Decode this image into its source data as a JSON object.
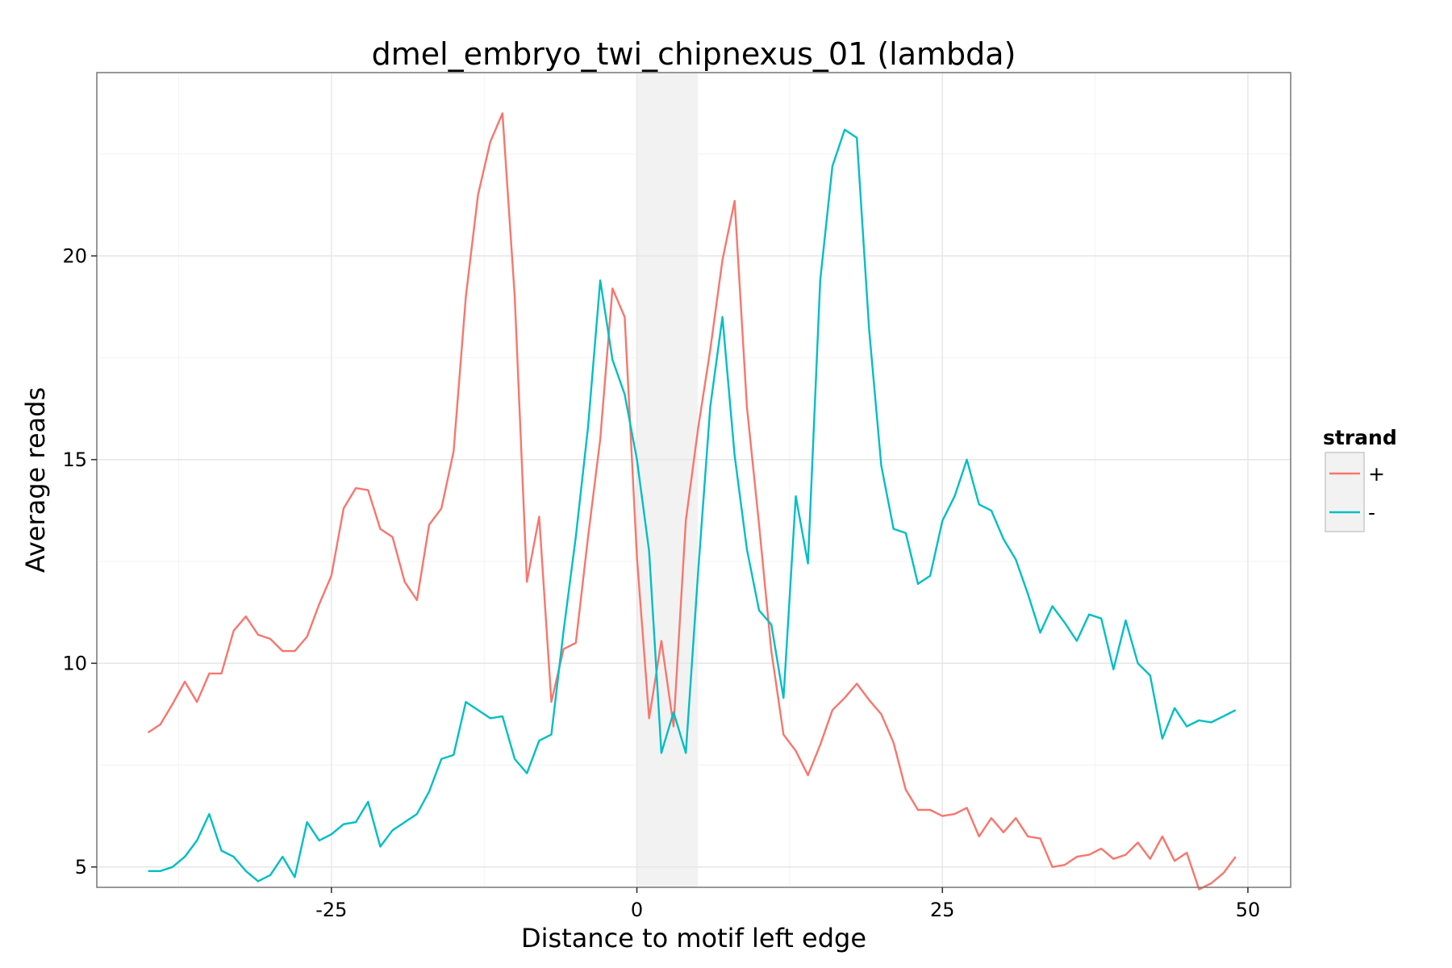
{
  "chart_data": {
    "type": "line",
    "title": "dmel_embryo_twi_chipnexus_01 (lambda)",
    "xlabel": "Distance to motif left edge",
    "ylabel": "Average reads",
    "xlim": [
      -44.2,
      53.5
    ],
    "ylim": [
      4.5,
      24.5
    ],
    "x_ticks": [
      -25,
      0,
      25,
      50
    ],
    "x_tick_labels": [
      "-25",
      "0",
      "25",
      "50"
    ],
    "y_ticks": [
      5,
      10,
      15,
      20
    ],
    "y_tick_labels": [
      "5",
      "10",
      "15",
      "20"
    ],
    "highlight_region": [
      0,
      5
    ],
    "legend": {
      "title": "strand",
      "position": "right"
    },
    "x": [
      -40,
      -39,
      -38,
      -37,
      -36,
      -35,
      -34,
      -33,
      -32,
      -31,
      -30,
      -29,
      -28,
      -27,
      -26,
      -25,
      -24,
      -23,
      -22,
      -21,
      -20,
      -19,
      -18,
      -17,
      -16,
      -15,
      -14,
      -13,
      -12,
      -11,
      -10,
      -9,
      -8,
      -7,
      -6,
      -5,
      -4,
      -3,
      -2,
      -1,
      0,
      1,
      2,
      3,
      4,
      5,
      6,
      7,
      8,
      9,
      10,
      11,
      12,
      13,
      14,
      15,
      16,
      17,
      18,
      19,
      20,
      21,
      22,
      23,
      24,
      25,
      26,
      27,
      28,
      29,
      30,
      31,
      32,
      33,
      34,
      35,
      36,
      37,
      38,
      39,
      40,
      41,
      42,
      43,
      44,
      45,
      46,
      47,
      48,
      49
    ],
    "series": [
      {
        "name": "+",
        "color": "#F8766D",
        "values": [
          8.3,
          8.5,
          9.0,
          9.55,
          9.05,
          9.75,
          9.75,
          10.8,
          11.15,
          10.7,
          10.6,
          10.3,
          10.3,
          10.65,
          11.45,
          12.15,
          13.8,
          14.3,
          14.25,
          13.3,
          13.1,
          12.0,
          11.55,
          13.4,
          13.8,
          15.2,
          19.0,
          21.5,
          22.8,
          23.5,
          19.0,
          12.0,
          13.6,
          9.05,
          10.35,
          10.5,
          13.1,
          15.5,
          19.2,
          18.5,
          12.6,
          8.65,
          10.55,
          8.45,
          13.5,
          15.75,
          17.7,
          19.9,
          21.35,
          16.3,
          13.4,
          10.3,
          8.25,
          7.85,
          7.25,
          8.0,
          8.85,
          9.15,
          9.5,
          9.1,
          8.75,
          8.05,
          6.9,
          6.4,
          6.4,
          6.25,
          6.3,
          6.45,
          5.75,
          6.2,
          5.85,
          6.2,
          5.75,
          5.7,
          5.0,
          5.05,
          5.25,
          5.3,
          5.45,
          5.2,
          5.3,
          5.6,
          5.2,
          5.75,
          5.15,
          5.35,
          4.45,
          4.6,
          4.85,
          5.25
        ]
      },
      {
        "name": "-",
        "color": "#00BFC4",
        "values": [
          4.9,
          4.9,
          5.0,
          5.25,
          5.65,
          6.3,
          5.4,
          5.25,
          4.9,
          4.65,
          4.8,
          5.25,
          4.75,
          6.1,
          5.65,
          5.8,
          6.05,
          6.1,
          6.6,
          5.5,
          5.9,
          6.1,
          6.3,
          6.85,
          7.65,
          7.75,
          9.05,
          8.85,
          8.65,
          8.7,
          7.65,
          7.3,
          8.1,
          8.25,
          10.8,
          13.1,
          15.8,
          19.4,
          17.45,
          16.6,
          15.0,
          12.75,
          7.8,
          8.8,
          7.8,
          12.2,
          16.3,
          18.5,
          15.1,
          12.8,
          11.3,
          10.95,
          9.15,
          14.1,
          12.45,
          19.4,
          22.2,
          23.1,
          22.9,
          18.2,
          14.85,
          13.3,
          13.2,
          11.95,
          12.15,
          13.5,
          14.1,
          15.0,
          13.9,
          13.75,
          13.05,
          12.55,
          11.7,
          10.75,
          11.4,
          11.0,
          10.55,
          11.2,
          11.1,
          9.85,
          11.05,
          10.0,
          9.7,
          8.15,
          8.9,
          8.45,
          8.6,
          8.55,
          8.7,
          8.85
        ]
      }
    ]
  }
}
